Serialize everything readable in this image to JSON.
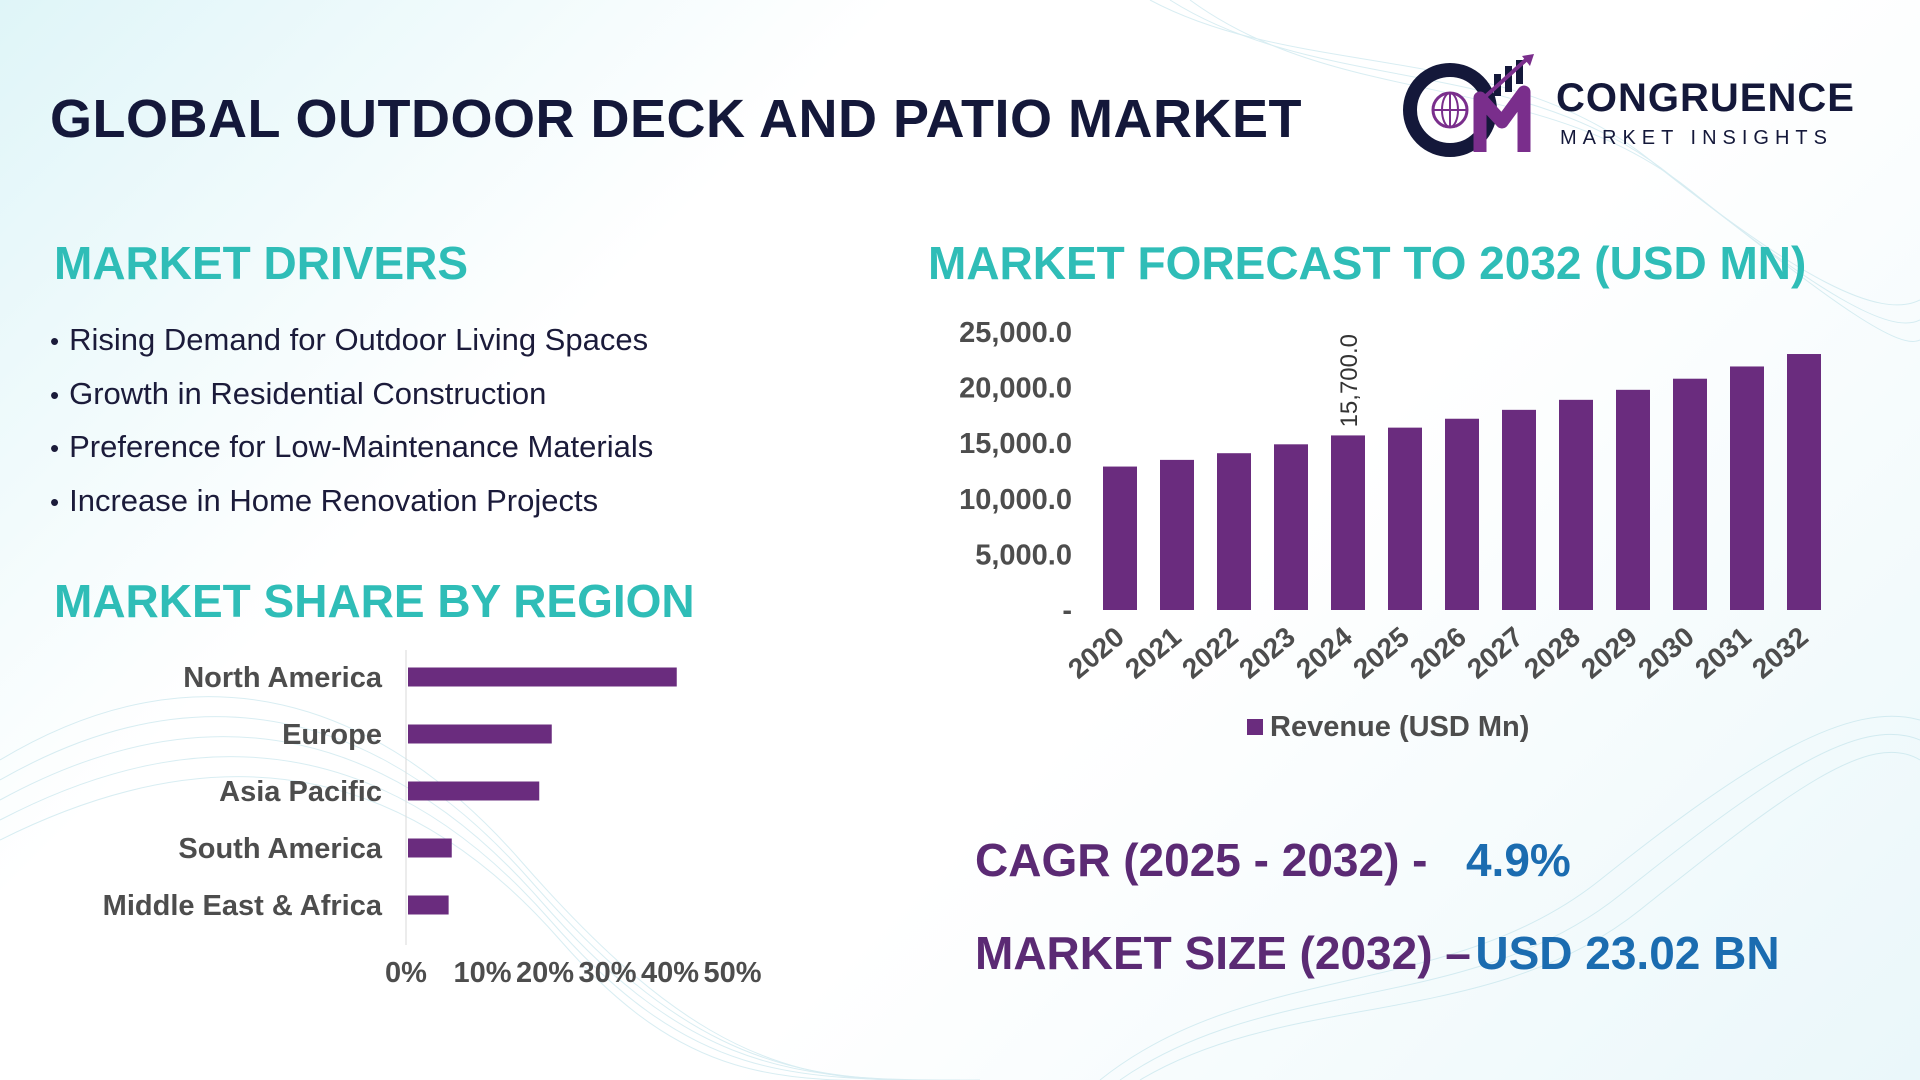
{
  "title": "GLOBAL OUTDOOR DECK AND PATIO MARKET",
  "logo": {
    "name": "CONGRUENCE",
    "tagline": "MARKET INSIGHTS",
    "colors": {
      "dark": "#14183a",
      "accent": "#7a2e8c"
    }
  },
  "drivers": {
    "title": "MARKET DRIVERS",
    "items": [
      "Rising Demand for Outdoor Living Spaces",
      "Growth in Residential Construction",
      "Preference for Low-Maintenance Materials",
      "Increase in Home Renovation Projects"
    ]
  },
  "region": {
    "title": "MARKET SHARE BY REGION"
  },
  "forecast": {
    "title": "MARKET FORECAST TO 2032 (USD MN)"
  },
  "kpis": {
    "cagr_label": "CAGR (2025 - 2032) -",
    "cagr_value": "4.9%",
    "size_label": "MARKET SIZE (2032) –",
    "size_value": "USD 23.02 BN"
  },
  "chart_data": [
    {
      "type": "bar",
      "orientation": "horizontal",
      "categories": [
        "North America",
        "Europe",
        "Asia Pacific",
        "South America",
        "Middle East & Africa"
      ],
      "values": [
        43,
        23,
        21,
        7,
        6.5
      ],
      "xlim": [
        0,
        50
      ],
      "xticks": [
        "0%",
        "10%",
        "20%",
        "30%",
        "40%",
        "50%"
      ],
      "color": "#6a2c7e",
      "grid": false
    },
    {
      "type": "bar",
      "categories": [
        "2020",
        "2021",
        "2022",
        "2023",
        "2024",
        "2025",
        "2026",
        "2027",
        "2028",
        "2029",
        "2030",
        "2031",
        "2032"
      ],
      "series": [
        {
          "name": "Revenue (USD Mn)",
          "values": [
            12900,
            13500,
            14100,
            14900,
            15700,
            16400,
            17200,
            18000,
            18900,
            19800,
            20800,
            21900,
            23020
          ]
        }
      ],
      "data_labels": [
        {
          "index": 4,
          "text": "15,700.0"
        }
      ],
      "ylim": [
        0,
        25000
      ],
      "yticks": [
        "-",
        "5,000.0",
        "10,000.0",
        "15,000.0",
        "20,000.0",
        "25,000.0"
      ],
      "legend": "bottom",
      "color": "#6a2c7e",
      "grid": false
    }
  ]
}
